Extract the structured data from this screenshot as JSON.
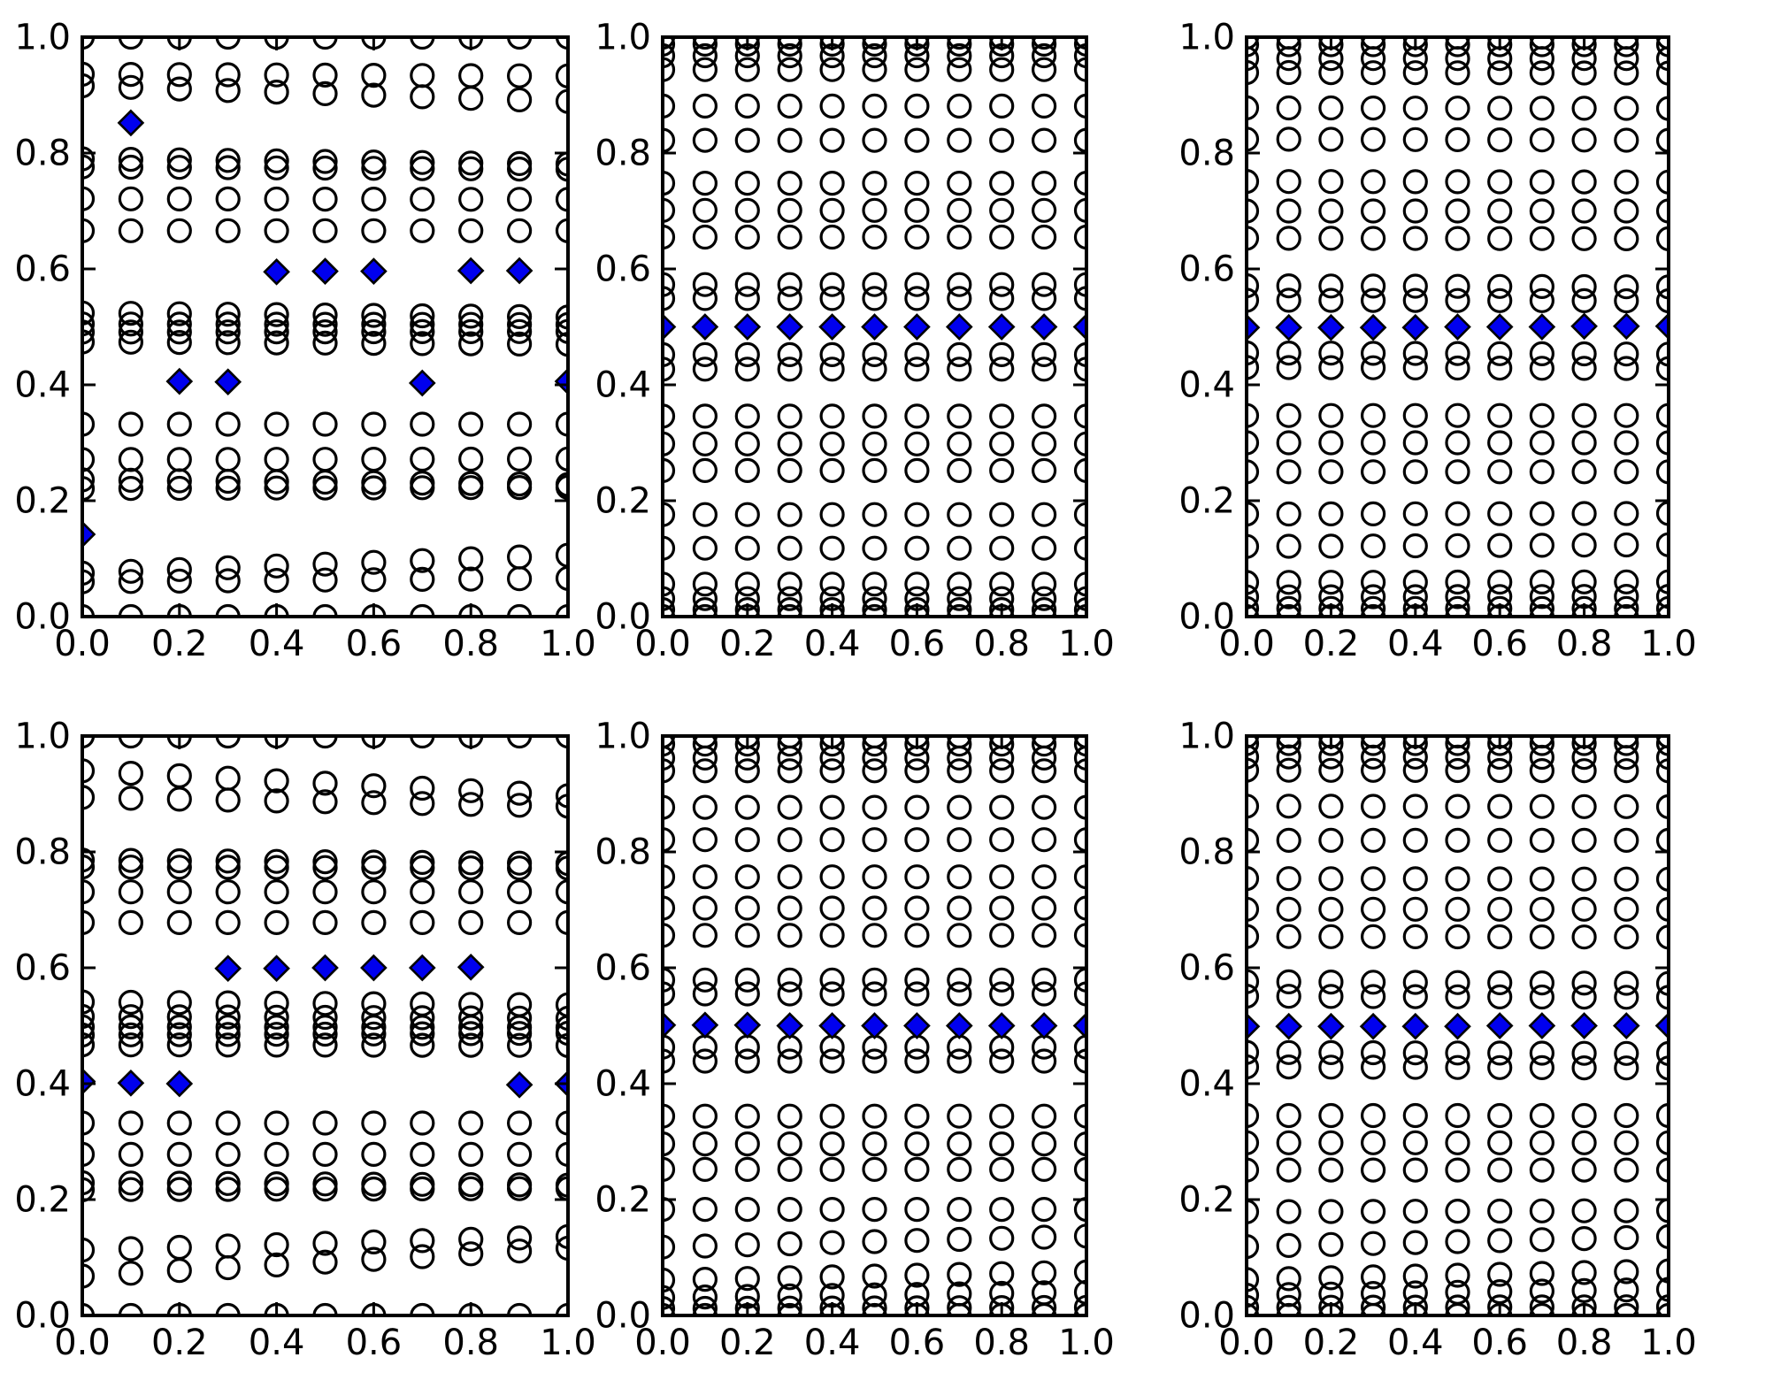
{
  "figure": {
    "background": "#ffffff",
    "n_rows": 2,
    "n_cols": 3
  },
  "style": {
    "circle_edge_color": "#000000",
    "circle_fill": "none",
    "diamond_fill": "#0000ee",
    "diamond_edge_color": "#000000",
    "spine_color": "#000000",
    "tick_color": "#000000"
  },
  "axes_ticks": {
    "values": [
      0.0,
      0.2,
      0.4,
      0.6,
      0.8,
      1.0
    ],
    "x_labels": [
      "0.0",
      "0.2",
      "0.4",
      "0.6",
      "0.8",
      "1.0"
    ],
    "y_labels": [
      "0.0",
      "0.2",
      "0.4",
      "0.6",
      "0.8",
      "1.0"
    ]
  },
  "chart_data": [
    {
      "type": "scatter",
      "position": "top-left",
      "title": "",
      "xlabel": "",
      "ylabel": "",
      "xlim": [
        0.0,
        1.0
      ],
      "ylim": [
        0.0,
        1.0
      ],
      "grid": false,
      "legend": false,
      "x_columns": [
        0.0,
        0.1,
        0.2,
        0.3,
        0.4,
        0.5,
        0.6,
        0.7,
        0.8,
        0.9,
        1.0
      ],
      "circle_rows": [
        [
          1.0,
          1.0
        ],
        [
          0.936,
          0.933
        ],
        [
          0.916,
          0.889
        ],
        [
          0.79,
          0.781
        ],
        [
          0.776,
          0.772
        ],
        [
          0.721,
          0.72
        ],
        [
          0.666,
          0.666
        ],
        [
          0.524,
          0.517
        ],
        [
          0.505,
          0.504
        ],
        [
          0.491,
          0.492
        ],
        [
          0.474,
          0.47
        ],
        [
          0.332,
          0.332
        ],
        [
          0.271,
          0.272
        ],
        [
          0.236,
          0.228
        ],
        [
          0.221,
          0.223
        ],
        [
          0.075,
          0.106
        ],
        [
          0.06,
          0.066
        ],
        [
          0.0,
          0.0
        ]
      ],
      "diamonds": [
        [
          0.0,
          0.142
        ],
        [
          0.1,
          0.852
        ],
        [
          0.2,
          0.406
        ],
        [
          0.3,
          0.405
        ],
        [
          0.4,
          0.595
        ],
        [
          0.5,
          0.596
        ],
        [
          0.6,
          0.596
        ],
        [
          0.7,
          0.403
        ],
        [
          0.8,
          0.597
        ],
        [
          0.9,
          0.597
        ],
        [
          1.0,
          0.406
        ]
      ]
    },
    {
      "type": "scatter",
      "position": "top-middle",
      "title": "",
      "xlabel": "",
      "ylabel": "",
      "xlim": [
        0.0,
        1.0
      ],
      "ylim": [
        0.0,
        1.0
      ],
      "grid": false,
      "legend": false,
      "x_columns": [
        0.0,
        0.1,
        0.2,
        0.3,
        0.4,
        0.5,
        0.6,
        0.7,
        0.8,
        0.9,
        1.0
      ],
      "circle_rows": [
        [
          1.0,
          1.0
        ],
        [
          0.988,
          0.988
        ],
        [
          0.968,
          0.968
        ],
        [
          0.944,
          0.944
        ],
        [
          0.881,
          0.881
        ],
        [
          0.822,
          0.822
        ],
        [
          0.748,
          0.748
        ],
        [
          0.701,
          0.701
        ],
        [
          0.655,
          0.655
        ],
        [
          0.573,
          0.573
        ],
        [
          0.549,
          0.549
        ],
        [
          0.452,
          0.452
        ],
        [
          0.427,
          0.427
        ],
        [
          0.346,
          0.346
        ],
        [
          0.298,
          0.298
        ],
        [
          0.252,
          0.252
        ],
        [
          0.176,
          0.176
        ],
        [
          0.118,
          0.118
        ],
        [
          0.056,
          0.056
        ],
        [
          0.031,
          0.031
        ],
        [
          0.012,
          0.012
        ],
        [
          0.0,
          0.0
        ]
      ],
      "diamonds": [
        [
          0.0,
          0.5
        ],
        [
          0.1,
          0.5
        ],
        [
          0.2,
          0.5
        ],
        [
          0.3,
          0.5
        ],
        [
          0.4,
          0.5
        ],
        [
          0.5,
          0.5
        ],
        [
          0.6,
          0.5
        ],
        [
          0.7,
          0.5
        ],
        [
          0.8,
          0.5
        ],
        [
          0.9,
          0.5
        ],
        [
          1.0,
          0.5
        ]
      ]
    },
    {
      "type": "scatter",
      "position": "top-right",
      "title": "",
      "xlabel": "",
      "ylabel": "",
      "xlim": [
        0.0,
        1.0
      ],
      "ylim": [
        0.0,
        1.0
      ],
      "grid": false,
      "legend": false,
      "x_columns": [
        0.0,
        0.1,
        0.2,
        0.3,
        0.4,
        0.5,
        0.6,
        0.7,
        0.8,
        0.9,
        1.0
      ],
      "circle_rows": [
        [
          1.0,
          1.0
        ],
        [
          0.987,
          0.987
        ],
        [
          0.963,
          0.963
        ],
        [
          0.939,
          0.938
        ],
        [
          0.878,
          0.877
        ],
        [
          0.824,
          0.822
        ],
        [
          0.751,
          0.75
        ],
        [
          0.7,
          0.7
        ],
        [
          0.653,
          0.652
        ],
        [
          0.571,
          0.569
        ],
        [
          0.546,
          0.545
        ],
        [
          0.455,
          0.453
        ],
        [
          0.43,
          0.428
        ],
        [
          0.347,
          0.347
        ],
        [
          0.3,
          0.3
        ],
        [
          0.25,
          0.25
        ],
        [
          0.177,
          0.178
        ],
        [
          0.121,
          0.124
        ],
        [
          0.059,
          0.06
        ],
        [
          0.034,
          0.035
        ],
        [
          0.014,
          0.014
        ],
        [
          0.0,
          0.0
        ]
      ],
      "diamonds": [
        [
          0.0,
          0.499
        ],
        [
          0.1,
          0.499
        ],
        [
          0.2,
          0.499
        ],
        [
          0.3,
          0.499
        ],
        [
          0.4,
          0.499
        ],
        [
          0.5,
          0.5
        ],
        [
          0.6,
          0.5
        ],
        [
          0.7,
          0.5
        ],
        [
          0.8,
          0.501
        ],
        [
          0.9,
          0.501
        ],
        [
          1.0,
          0.501
        ]
      ]
    },
    {
      "type": "scatter",
      "position": "bottom-left",
      "title": "",
      "xlabel": "",
      "ylabel": "",
      "xlim": [
        0.0,
        1.0
      ],
      "ylim": [
        0.0,
        1.0
      ],
      "grid": false,
      "legend": false,
      "x_columns": [
        0.0,
        0.1,
        0.2,
        0.3,
        0.4,
        0.5,
        0.6,
        0.7,
        0.8,
        0.9,
        1.0
      ],
      "circle_rows": [
        [
          1.0,
          1.0
        ],
        [
          0.94,
          0.897
        ],
        [
          0.894,
          0.879
        ],
        [
          0.786,
          0.78
        ],
        [
          0.774,
          0.772
        ],
        [
          0.731,
          0.731
        ],
        [
          0.678,
          0.678
        ],
        [
          0.541,
          0.536
        ],
        [
          0.516,
          0.513
        ],
        [
          0.498,
          0.497
        ],
        [
          0.484,
          0.487
        ],
        [
          0.467,
          0.466
        ],
        [
          0.332,
          0.332
        ],
        [
          0.278,
          0.278
        ],
        [
          0.229,
          0.225
        ],
        [
          0.217,
          0.219
        ],
        [
          0.113,
          0.136
        ],
        [
          0.068,
          0.116
        ],
        [
          0.0,
          0.0
        ]
      ],
      "diamonds": [
        [
          0.0,
          0.404
        ],
        [
          0.1,
          0.401
        ],
        [
          0.2,
          0.4
        ],
        [
          0.3,
          0.599
        ],
        [
          0.4,
          0.599
        ],
        [
          0.5,
          0.6
        ],
        [
          0.6,
          0.6
        ],
        [
          0.7,
          0.6
        ],
        [
          0.8,
          0.601
        ],
        [
          0.9,
          0.398
        ],
        [
          1.0,
          0.4
        ]
      ]
    },
    {
      "type": "scatter",
      "position": "bottom-middle",
      "title": "",
      "xlabel": "",
      "ylabel": "",
      "xlim": [
        0.0,
        1.0
      ],
      "ylim": [
        0.0,
        1.0
      ],
      "grid": false,
      "legend": false,
      "x_columns": [
        0.0,
        0.1,
        0.2,
        0.3,
        0.4,
        0.5,
        0.6,
        0.7,
        0.8,
        0.9,
        1.0
      ],
      "circle_rows": [
        [
          1.0,
          1.0
        ],
        [
          0.986,
          0.986
        ],
        [
          0.962,
          0.962
        ],
        [
          0.94,
          0.94
        ],
        [
          0.877,
          0.877
        ],
        [
          0.821,
          0.821
        ],
        [
          0.757,
          0.757
        ],
        [
          0.703,
          0.703
        ],
        [
          0.656,
          0.656
        ],
        [
          0.579,
          0.579
        ],
        [
          0.555,
          0.555
        ],
        [
          0.463,
          0.463
        ],
        [
          0.439,
          0.439
        ],
        [
          0.344,
          0.344
        ],
        [
          0.296,
          0.296
        ],
        [
          0.252,
          0.252
        ],
        [
          0.183,
          0.183
        ],
        [
          0.118,
          0.137
        ],
        [
          0.061,
          0.075
        ],
        [
          0.031,
          0.04
        ],
        [
          0.012,
          0.014
        ],
        [
          0.0,
          0.0
        ]
      ],
      "diamonds": [
        [
          0.0,
          0.501
        ],
        [
          0.1,
          0.501
        ],
        [
          0.2,
          0.501
        ],
        [
          0.3,
          0.5
        ],
        [
          0.4,
          0.5
        ],
        [
          0.5,
          0.5
        ],
        [
          0.6,
          0.5
        ],
        [
          0.7,
          0.5
        ],
        [
          0.8,
          0.5
        ],
        [
          0.9,
          0.5
        ],
        [
          1.0,
          0.5
        ]
      ]
    },
    {
      "type": "scatter",
      "position": "bottom-right",
      "title": "",
      "xlabel": "",
      "ylabel": "",
      "xlim": [
        0.0,
        1.0
      ],
      "ylim": [
        0.0,
        1.0
      ],
      "grid": false,
      "legend": false,
      "x_columns": [
        0.0,
        0.1,
        0.2,
        0.3,
        0.4,
        0.5,
        0.6,
        0.7,
        0.8,
        0.9,
        1.0
      ],
      "circle_rows": [
        [
          1.0,
          1.0
        ],
        [
          0.987,
          0.987
        ],
        [
          0.964,
          0.963
        ],
        [
          0.941,
          0.94
        ],
        [
          0.879,
          0.878
        ],
        [
          0.82,
          0.82
        ],
        [
          0.754,
          0.753
        ],
        [
          0.701,
          0.701
        ],
        [
          0.654,
          0.653
        ],
        [
          0.576,
          0.573
        ],
        [
          0.551,
          0.549
        ],
        [
          0.454,
          0.452
        ],
        [
          0.429,
          0.427
        ],
        [
          0.345,
          0.345
        ],
        [
          0.298,
          0.298
        ],
        [
          0.251,
          0.251
        ],
        [
          0.179,
          0.181
        ],
        [
          0.119,
          0.136
        ],
        [
          0.062,
          0.077
        ],
        [
          0.035,
          0.045
        ],
        [
          0.014,
          0.015
        ],
        [
          0.0,
          0.0
        ]
      ],
      "diamonds": [
        [
          0.0,
          0.499
        ],
        [
          0.1,
          0.499
        ],
        [
          0.2,
          0.499
        ],
        [
          0.3,
          0.499
        ],
        [
          0.4,
          0.499
        ],
        [
          0.5,
          0.499
        ],
        [
          0.6,
          0.5
        ],
        [
          0.7,
          0.5
        ],
        [
          0.8,
          0.5
        ],
        [
          0.9,
          0.5
        ],
        [
          1.0,
          0.5
        ]
      ]
    }
  ]
}
